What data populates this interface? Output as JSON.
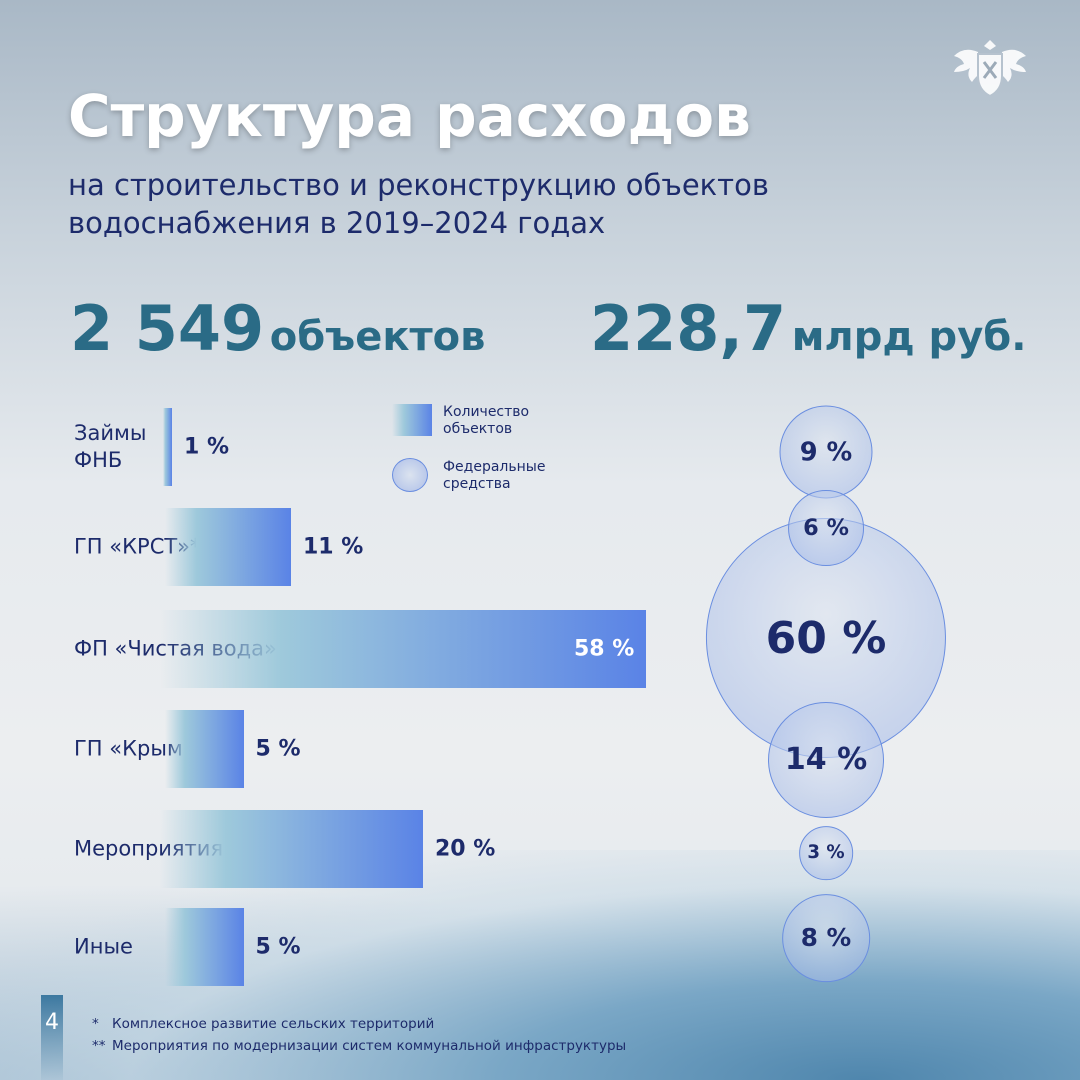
{
  "header": {
    "title": "Структура расходов",
    "subtitle": "на строительство и реконструкцию объектов водоснабжения в 2019–2024 годах"
  },
  "stats": [
    {
      "value": "2 549",
      "unit": "объектов"
    },
    {
      "value": "228,7",
      "unit": "млрд руб."
    }
  ],
  "legend": {
    "bar": "Количество объектов",
    "bubble": "Федеральные средства"
  },
  "colors": {
    "title": "#ffffff",
    "text": "#1d2b6b",
    "stat": "#2a6b86",
    "bar_end": "#5a83e6",
    "bar_start": "#9ec9db"
  },
  "chart_data": {
    "type": "bar",
    "categories": [
      "Займы ФНБ",
      "ГП «КРСТ»*",
      "ФП «Чистая вода»",
      "ГП «Крым»",
      "Мероприятия по «МСКИ»**",
      "Иные"
    ],
    "series": [
      {
        "name": "Количество объектов",
        "values": [
          1,
          11,
          58,
          5,
          20,
          5
        ],
        "labels": [
          "1 %",
          "11 %",
          "58 %",
          "5 %",
          "20 %",
          "5 %"
        ]
      },
      {
        "name": "Федеральные средства",
        "values": [
          9,
          6,
          60,
          14,
          3,
          8
        ],
        "labels": [
          "9 %",
          "6 %",
          "60 %",
          "14 %",
          "3 %",
          "8 %"
        ]
      }
    ],
    "unit": "%"
  },
  "footer": {
    "page": "4",
    "notes": [
      {
        "mark": "*",
        "text": "Комплексное развитие сельских территорий"
      },
      {
        "mark": "**",
        "text": "Мероприятия по модернизации систем коммунальной инфраструктуры"
      }
    ]
  }
}
